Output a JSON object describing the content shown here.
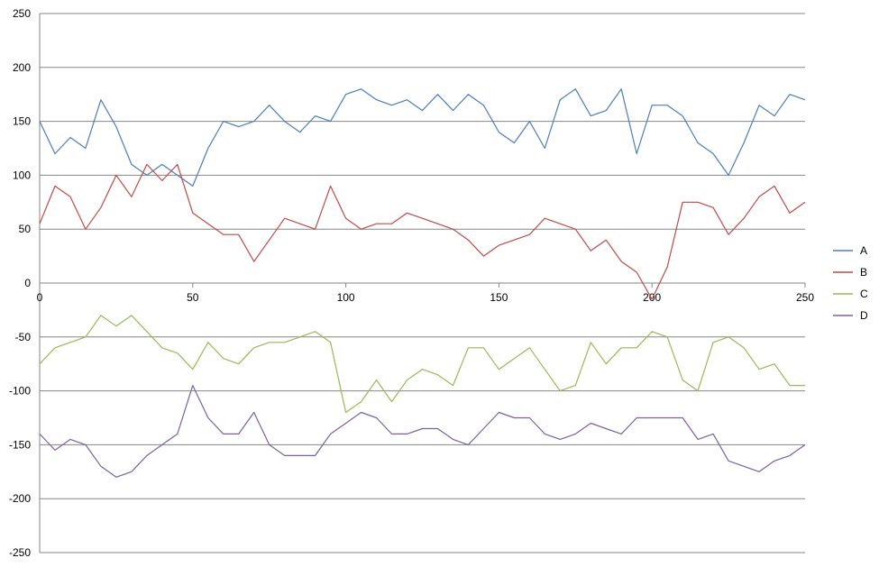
{
  "chart_data": {
    "type": "line",
    "title": "",
    "xlabel": "",
    "ylabel": "",
    "xlim": [
      0,
      250
    ],
    "ylim": [
      -250,
      250
    ],
    "x_ticks": [
      0,
      50,
      100,
      150,
      200,
      250
    ],
    "y_ticks": [
      250,
      200,
      150,
      100,
      50,
      0,
      -50,
      -100,
      -150,
      -200,
      -250
    ],
    "grid": "horizontal",
    "legend": "right",
    "x": [
      0,
      5,
      10,
      15,
      20,
      25,
      30,
      35,
      40,
      45,
      50,
      55,
      60,
      65,
      70,
      75,
      80,
      85,
      90,
      95,
      100,
      105,
      110,
      115,
      120,
      125,
      130,
      135,
      140,
      145,
      150,
      155,
      160,
      165,
      170,
      175,
      180,
      185,
      190,
      195,
      200,
      205,
      210,
      215,
      220,
      225,
      230,
      235,
      240,
      245,
      250
    ],
    "series": [
      {
        "name": "A",
        "color": "#4a7ebb",
        "values": [
          150,
          120,
          135,
          125,
          170,
          145,
          110,
          100,
          110,
          100,
          90,
          125,
          150,
          145,
          150,
          165,
          150,
          140,
          155,
          150,
          175,
          180,
          170,
          165,
          170,
          160,
          175,
          160,
          175,
          165,
          140,
          130,
          150,
          125,
          170,
          180,
          155,
          160,
          180,
          120,
          165,
          165,
          155,
          130,
          120,
          100,
          130,
          165,
          155,
          175,
          170
        ]
      },
      {
        "name": "B",
        "color": "#be4b48",
        "values": [
          55,
          90,
          80,
          50,
          70,
          100,
          80,
          110,
          95,
          110,
          65,
          55,
          45,
          45,
          20,
          40,
          60,
          55,
          50,
          90,
          60,
          50,
          55,
          55,
          65,
          60,
          55,
          50,
          40,
          25,
          35,
          40,
          45,
          60,
          55,
          50,
          30,
          40,
          20,
          10,
          -15,
          15,
          75,
          75,
          70,
          45,
          60,
          80,
          90,
          65,
          75
        ]
      },
      {
        "name": "C",
        "color": "#98b954",
        "values": [
          -75,
          -60,
          -55,
          -50,
          -30,
          -40,
          -30,
          -45,
          -60,
          -65,
          -80,
          -55,
          -70,
          -75,
          -60,
          -55,
          -55,
          -50,
          -45,
          -55,
          -120,
          -110,
          -90,
          -110,
          -90,
          -80,
          -85,
          -95,
          -60,
          -60,
          -80,
          -70,
          -60,
          -80,
          -100,
          -95,
          -55,
          -75,
          -60,
          -60,
          -45,
          -50,
          -90,
          -100,
          -55,
          -50,
          -60,
          -80,
          -75,
          -95,
          -95
        ]
      },
      {
        "name": "D",
        "color": "#7d60a0",
        "values": [
          -140,
          -155,
          -145,
          -150,
          -170,
          -180,
          -175,
          -160,
          -150,
          -140,
          -95,
          -125,
          -140,
          -140,
          -120,
          -150,
          -160,
          -160,
          -160,
          -140,
          -130,
          -120,
          -125,
          -140,
          -140,
          -135,
          -135,
          -145,
          -150,
          -135,
          -120,
          -125,
          -125,
          -140,
          -145,
          -140,
          -130,
          -135,
          -140,
          -125,
          -125,
          -125,
          -125,
          -145,
          -140,
          -165,
          -170,
          -175,
          -165,
          -160,
          -150
        ]
      }
    ]
  }
}
